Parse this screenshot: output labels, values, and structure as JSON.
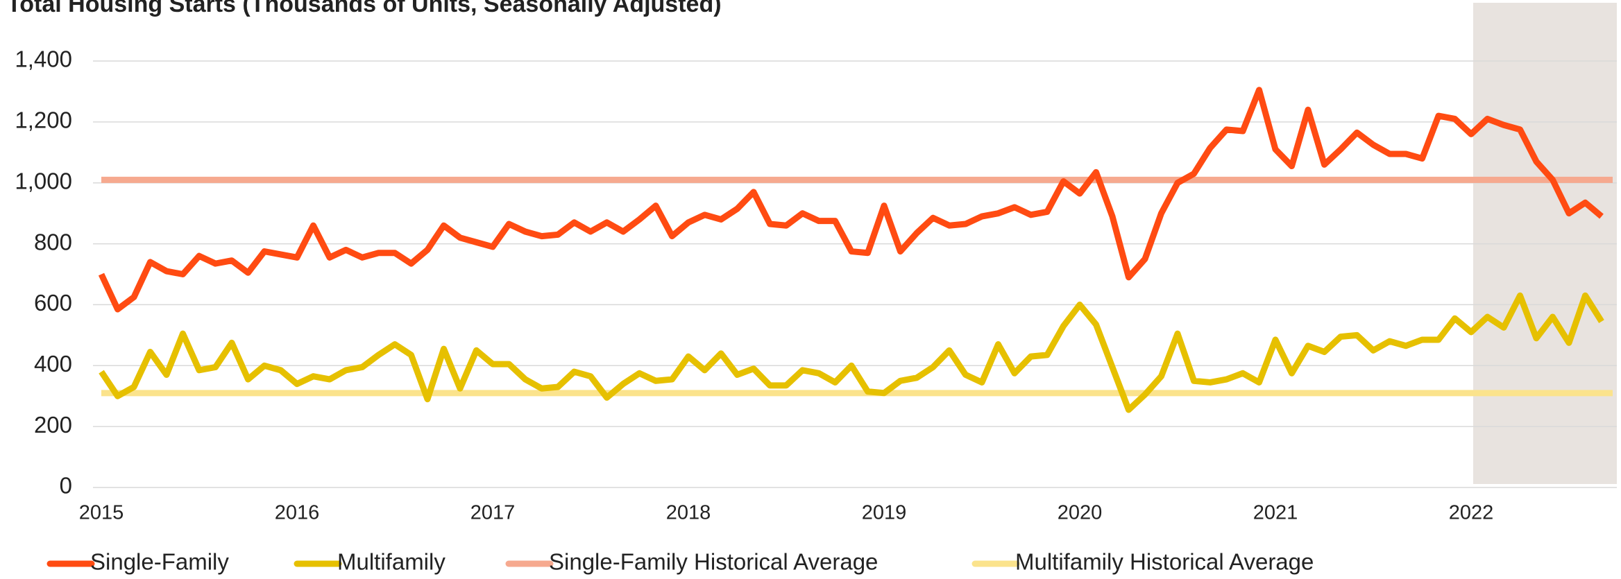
{
  "chart_data": {
    "type": "line",
    "title": "Total Housing Starts (Thousands of Units, Seasonally Adjusted)",
    "categories": [
      "2015",
      null,
      null,
      null,
      null,
      null,
      null,
      null,
      null,
      null,
      null,
      null,
      "2016",
      null,
      null,
      null,
      null,
      null,
      null,
      null,
      null,
      null,
      null,
      null,
      "2017",
      null,
      null,
      null,
      null,
      null,
      null,
      null,
      null,
      null,
      null,
      null,
      "2018",
      null,
      null,
      null,
      null,
      null,
      null,
      null,
      null,
      null,
      null,
      null,
      "2019",
      null,
      null,
      null,
      null,
      null,
      null,
      null,
      null,
      null,
      null,
      null,
      "2020",
      null,
      null,
      null,
      null,
      null,
      null,
      null,
      null,
      null,
      null,
      null,
      "2021",
      null,
      null,
      null,
      null,
      null,
      null,
      null,
      null,
      null,
      null,
      null,
      "2022",
      null,
      null,
      null,
      null,
      null,
      null,
      null,
      null
    ],
    "series": [
      {
        "name": "Single-Family",
        "color": "#ff4b12",
        "values": [
          700,
          585,
          625,
          740,
          710,
          700,
          760,
          735,
          745,
          705,
          775,
          765,
          755,
          860,
          755,
          780,
          755,
          770,
          770,
          735,
          780,
          860,
          820,
          805,
          790,
          865,
          840,
          825,
          830,
          870,
          840,
          870,
          840,
          880,
          925,
          825,
          870,
          895,
          880,
          915,
          970,
          865,
          860,
          900,
          875,
          875,
          775,
          770,
          925,
          775,
          835,
          885,
          860,
          865,
          890,
          900,
          920,
          895,
          905,
          1005,
          965,
          1035,
          890,
          690,
          750,
          900,
          1000,
          1030,
          1115,
          1175,
          1170,
          1305,
          1110,
          1055,
          1240,
          1060,
          1110,
          1165,
          1125,
          1095,
          1095,
          1080,
          1220,
          1210,
          1160,
          1210,
          1190,
          1175,
          1070,
          1010,
          900,
          935,
          890
        ]
      },
      {
        "name": "Multifamily",
        "color": "#e6c000",
        "values": [
          380,
          300,
          330,
          445,
          370,
          505,
          385,
          395,
          475,
          355,
          400,
          385,
          340,
          365,
          355,
          385,
          395,
          435,
          470,
          435,
          290,
          455,
          325,
          450,
          405,
          405,
          355,
          325,
          330,
          380,
          365,
          295,
          340,
          375,
          350,
          355,
          430,
          385,
          440,
          370,
          390,
          335,
          335,
          385,
          375,
          345,
          400,
          315,
          310,
          350,
          360,
          395,
          450,
          370,
          345,
          470,
          375,
          430,
          435,
          530,
          600,
          535,
          395,
          255,
          305,
          365,
          505,
          350,
          345,
          355,
          375,
          345,
          485,
          375,
          465,
          445,
          495,
          500,
          450,
          480,
          465,
          485,
          485,
          555,
          510,
          560,
          525,
          630,
          490,
          560,
          475,
          630,
          545
        ]
      }
    ],
    "reference_lines": [
      {
        "name": "Single-Family Historical Average",
        "color": "#f6a98f",
        "value": 1010
      },
      {
        "name": "Multifamily Historical Average",
        "color": "#fbe38c",
        "value": 310
      }
    ],
    "ylim": [
      0,
      1400
    ],
    "yticks": [
      0,
      200,
      400,
      600,
      800,
      {
        "value": 1000,
        "label": "1,000"
      },
      {
        "value": 1200,
        "label": "1,200"
      },
      {
        "value": 1400,
        "label": "1,400"
      }
    ],
    "grid": true
  }
}
